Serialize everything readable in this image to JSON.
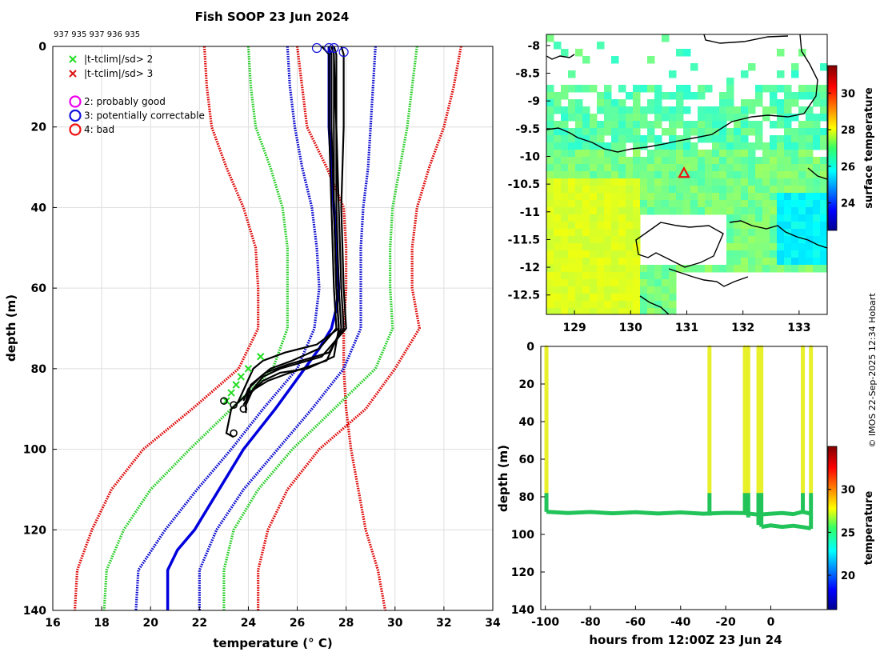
{
  "chart_data": [
    {
      "type": "line",
      "name": "profile",
      "title": "Fish SOOP 23 Jun 2024",
      "annotation": "937 935 937 936 935",
      "xlabel": "temperature (° C)",
      "ylabel": "depth (m)",
      "xlim": [
        16,
        34
      ],
      "ylim": [
        140,
        0
      ],
      "xticks": [
        16,
        18,
        20,
        22,
        24,
        26,
        28,
        30,
        32,
        34
      ],
      "yticks": [
        0,
        20,
        40,
        60,
        80,
        100,
        120,
        140
      ],
      "legend": {
        "position": "top-left",
        "entries": [
          {
            "marker": "x",
            "color": "#22dd22",
            "label": "|t-tclim|/sd> 2"
          },
          {
            "marker": "x",
            "color": "#dd1111",
            "label": "|t-tclim|/sd> 3"
          },
          {
            "marker": "o",
            "color": "#ee00ee",
            "label": "2: probably good"
          },
          {
            "marker": "o",
            "color": "#1111dd",
            "label": "3: potentially correctable"
          },
          {
            "marker": "o",
            "color": "#ee1111",
            "label": "4: bad"
          }
        ]
      },
      "depths": [
        0,
        10,
        20,
        30,
        40,
        50,
        60,
        70,
        80,
        90,
        100,
        110,
        120,
        130,
        140
      ],
      "climatology": [
        {
          "name": "clim - 3sd",
          "style": "dotted",
          "color": "#dd0000",
          "values": [
            26.0,
            26.2,
            26.4,
            27.2,
            27.9,
            28.0,
            28.0,
            27.9,
            27.9,
            28.0,
            28.2,
            28.5,
            28.8,
            29.3,
            29.6
          ]
        },
        {
          "name": "clim - 3sd (lower)",
          "style": "dotted",
          "color": "#dd0000",
          "values": [
            22.2,
            22.3,
            22.5,
            23.1,
            23.8,
            24.3,
            24.4,
            24.4,
            23.6,
            21.7,
            19.7,
            18.4,
            17.6,
            17.0,
            16.9
          ]
        },
        {
          "name": "clim - 2sd",
          "style": "dotted",
          "color": "#22cc22",
          "values": [
            24.0,
            24.1,
            24.3,
            24.9,
            25.4,
            25.6,
            25.6,
            25.6,
            25.0,
            23.3,
            21.6,
            20.0,
            18.9,
            18.2,
            18.1
          ]
        },
        {
          "name": "clim - 1sd",
          "style": "dotted",
          "color": "#0000cc",
          "values": [
            25.6,
            25.7,
            25.9,
            26.2,
            26.6,
            26.8,
            26.9,
            26.7,
            26.0,
            24.6,
            23.3,
            21.9,
            20.6,
            19.5,
            19.4
          ]
        },
        {
          "name": "clim + 1sd",
          "style": "dotted",
          "color": "#0000cc",
          "values": [
            29.2,
            29.1,
            29.0,
            28.9,
            28.7,
            28.6,
            28.6,
            28.6,
            27.9,
            26.6,
            25.2,
            23.8,
            22.7,
            22.0,
            22.0
          ]
        },
        {
          "name": "clim + 2sd",
          "style": "dotted",
          "color": "#22cc22",
          "values": [
            30.9,
            30.7,
            30.5,
            30.2,
            29.9,
            29.8,
            29.8,
            29.9,
            29.2,
            27.5,
            25.8,
            24.4,
            23.4,
            23.0,
            23.0
          ]
        },
        {
          "name": "clim + 3sd",
          "style": "dotted",
          "color": "#dd0000",
          "values": [
            32.7,
            32.4,
            32.0,
            31.4,
            30.9,
            30.7,
            30.7,
            31.0,
            30.0,
            28.8,
            26.9,
            25.6,
            24.8,
            24.4,
            24.4
          ]
        }
      ],
      "mean": {
        "name": "climatology mean",
        "style": "solid",
        "color": "#0000dd",
        "depths": [
          0,
          10,
          20,
          30,
          40,
          50,
          60,
          65,
          70,
          75,
          80,
          90,
          100,
          110,
          120,
          125,
          130,
          140
        ],
        "values": [
          27.3,
          27.3,
          27.3,
          27.4,
          27.5,
          27.6,
          27.7,
          27.6,
          27.4,
          26.9,
          26.3,
          25.1,
          23.8,
          22.8,
          21.8,
          21.1,
          20.7,
          20.7
        ]
      },
      "profiles": [
        {
          "depths": [
            0,
            2,
            20,
            40,
            60,
            70,
            74,
            76,
            78,
            80,
            84,
            88,
            89
          ],
          "values": [
            27.4,
            27.5,
            27.5,
            27.5,
            27.6,
            27.7,
            26.8,
            25.5,
            24.6,
            24.2,
            23.9,
            23.6,
            23.5
          ]
        },
        {
          "depths": [
            0,
            2,
            20,
            40,
            60,
            70,
            76,
            79,
            81,
            84,
            88,
            90
          ],
          "values": [
            27.5,
            27.6,
            27.6,
            27.7,
            27.8,
            27.9,
            27.3,
            25.6,
            24.7,
            24.1,
            23.9,
            23.9
          ]
        },
        {
          "depths": [
            0,
            2,
            20,
            40,
            60,
            70,
            77,
            80,
            82,
            85,
            89,
            91
          ],
          "values": [
            27.8,
            27.9,
            27.9,
            27.8,
            27.9,
            28.0,
            27.0,
            25.3,
            24.6,
            24.2,
            23.9,
            23.9
          ]
        },
        {
          "depths": [
            0,
            2,
            20,
            40,
            60,
            70,
            78,
            81,
            83,
            86,
            90,
            96,
            97
          ],
          "values": [
            27.4,
            27.5,
            27.6,
            27.6,
            27.7,
            27.8,
            27.2,
            25.7,
            24.8,
            24.0,
            23.3,
            23.1,
            23.4
          ]
        },
        {
          "depths": [
            0,
            2,
            20,
            40,
            60,
            70,
            75,
            78,
            80,
            82,
            85,
            88
          ],
          "values": [
            27.0,
            27.3,
            27.3,
            27.4,
            27.5,
            27.6,
            26.9,
            25.8,
            24.9,
            24.5,
            24.0,
            23.8
          ]
        },
        {
          "depths": [
            0,
            2,
            20,
            40,
            60,
            70,
            77,
            80,
            81,
            83,
            86,
            89
          ],
          "values": [
            27.3,
            27.4,
            27.4,
            27.5,
            27.6,
            27.7,
            27.5,
            26.4,
            25.3,
            24.6,
            24.1,
            23.8
          ]
        }
      ],
      "flags_circles": [
        {
          "t": 26.8,
          "d": 0,
          "color": "#1111dd"
        },
        {
          "t": 27.3,
          "d": 0,
          "color": "#1111dd"
        },
        {
          "t": 27.5,
          "d": 0,
          "color": "#1111dd"
        },
        {
          "t": 27.9,
          "d": 1,
          "color": "#1111dd"
        }
      ],
      "flags_x": [
        {
          "t": 24.5,
          "d": 77,
          "color": "#22dd22"
        },
        {
          "t": 24.0,
          "d": 80,
          "color": "#22dd22"
        },
        {
          "t": 23.7,
          "d": 82,
          "color": "#22dd22"
        },
        {
          "t": 23.5,
          "d": 84,
          "color": "#22dd22"
        },
        {
          "t": 23.3,
          "d": 86,
          "color": "#22dd22"
        },
        {
          "t": 23.1,
          "d": 88,
          "color": "#22dd22"
        }
      ],
      "bottom_circles": [
        {
          "t": 23.0,
          "d": 88
        },
        {
          "t": 23.4,
          "d": 89
        },
        {
          "t": 23.8,
          "d": 90
        },
        {
          "t": 23.4,
          "d": 96
        }
      ]
    },
    {
      "type": "heatmap",
      "name": "sst_map",
      "colorbar_label": "surface temperature",
      "colorbar_range": [
        22.5,
        31.5
      ],
      "colorbar_ticks": [
        24,
        26,
        28,
        30
      ],
      "xlim": [
        128.5,
        133.5
      ],
      "ylim": [
        -12.85,
        -7.8
      ],
      "xticks": [
        129,
        130,
        131,
        132,
        133
      ],
      "yticks": [
        -8,
        -8.5,
        -9,
        -9.5,
        -10,
        -10.5,
        -11,
        -11.5,
        -12,
        -12.5
      ],
      "marker": {
        "lon": 130.95,
        "lat": -10.3,
        "symbol": "triangle",
        "color": "#ee1111"
      }
    },
    {
      "type": "scatter",
      "name": "timeseries",
      "xlabel": "hours from 12:00Z 23 Jun 24",
      "ylabel": "depth (m)",
      "colorbar_label": "temperature",
      "colorbar_range": [
        16,
        35
      ],
      "colorbar_ticks": [
        20,
        25,
        30
      ],
      "xlim": [
        -102,
        25
      ],
      "ylim": [
        140,
        0
      ],
      "xticks": [
        -100,
        -80,
        -60,
        -40,
        -20,
        0
      ],
      "yticks": [
        0,
        20,
        40,
        60,
        80,
        100,
        120,
        140
      ],
      "casts": [
        {
          "hour": -99.5,
          "bottom": 88
        },
        {
          "hour": -27.2,
          "bottom": 90
        },
        {
          "hour": -11.5,
          "bottom": 88
        },
        {
          "hour": -10.0,
          "bottom": 91
        },
        {
          "hour": -5.5,
          "bottom": 95
        },
        {
          "hour": -4.2,
          "bottom": 96
        },
        {
          "hour": 14.2,
          "bottom": 88
        },
        {
          "hour": 17.8,
          "bottom": 97
        }
      ],
      "tow_tracks": [
        {
          "hours": [
            -99.5,
            -90,
            -80,
            -70,
            -60,
            -50,
            -40,
            -30,
            -20,
            -12,
            -5.5
          ],
          "depths": [
            88,
            88.6,
            88.1,
            88.8,
            88.2,
            88.9,
            88.3,
            89.0,
            88.5,
            88.6,
            89.5
          ]
        },
        {
          "hours": [
            -5.5,
            0,
            5,
            10,
            14,
            17.8
          ],
          "depths": [
            89.5,
            89.0,
            88.6,
            89.2,
            88.0,
            89.0
          ]
        },
        {
          "hours": [
            -4.2,
            0,
            5,
            10,
            14,
            17.8
          ],
          "depths": [
            96,
            95.2,
            96.0,
            95.4,
            96.1,
            96.8
          ]
        }
      ]
    }
  ],
  "credit": "© IMOS 22-Sep-2025 12:34 Hobart"
}
